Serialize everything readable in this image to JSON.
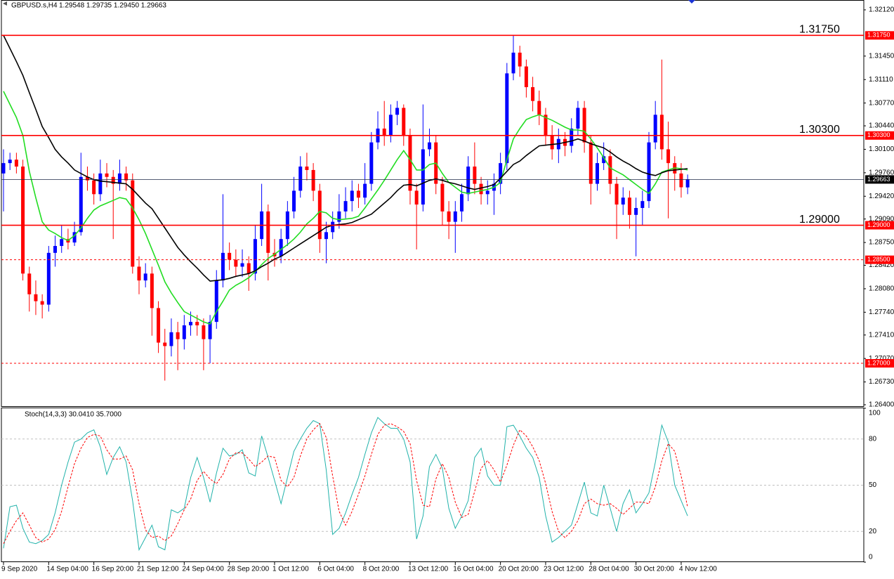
{
  "header": {
    "symbol": "GBPUSD.s,H4",
    "ohlc": "1.29548 1.29735 1.29450 1.29663"
  },
  "chart_data": [
    {
      "type": "candlestick",
      "categories": [
        "9 Sep 2020",
        null,
        null,
        null,
        null,
        null,
        null,
        "14 Sep 04:00",
        null,
        null,
        null,
        null,
        null,
        null,
        "16 Sep 20:00",
        null,
        null,
        null,
        null,
        null,
        null,
        "21 Sep 12:00",
        null,
        null,
        null,
        null,
        null,
        null,
        "24 Sep 04:00",
        null,
        null,
        null,
        null,
        null,
        null,
        "28 Sep 20:00",
        null,
        null,
        null,
        null,
        null,
        null,
        "1 Oct 12:00",
        null,
        null,
        null,
        null,
        null,
        null,
        "6 Oct 04:00",
        null,
        null,
        null,
        null,
        null,
        null,
        "8 Oct 20:00",
        null,
        null,
        null,
        null,
        null,
        null,
        "13 Oct 12:00",
        null,
        null,
        null,
        null,
        null,
        null,
        "16 Oct 04:00",
        null,
        null,
        null,
        null,
        null,
        null,
        "20 Oct 20:00",
        null,
        null,
        null,
        null,
        null,
        null,
        "23 Oct 12:00",
        null,
        null,
        null,
        null,
        null,
        null,
        "28 Oct 04:00",
        null,
        null,
        null,
        null,
        null,
        null,
        "30 Oct 20:00",
        null,
        null,
        null,
        null,
        null,
        null,
        "4 Nov 12:00",
        null
      ],
      "open": [
        1.2975,
        1.299,
        1.2995,
        1.2985,
        1.283,
        1.28,
        1.279,
        1.2785,
        1.286,
        1.287,
        1.288,
        1.2875,
        1.289,
        1.297,
        1.2965,
        1.2945,
        1.2975,
        1.297,
        1.296,
        1.2975,
        1.2965,
        1.284,
        1.282,
        1.283,
        1.278,
        1.273,
        1.2725,
        1.2745,
        1.2735,
        1.2755,
        1.276,
        1.2755,
        1.2735,
        1.276,
        1.282,
        1.286,
        1.285,
        1.284,
        1.2845,
        1.283,
        1.288,
        1.292,
        1.286,
        1.2855,
        1.288,
        1.292,
        1.295,
        1.2985,
        1.298,
        1.295,
        1.288,
        1.289,
        1.2905,
        1.292,
        1.2935,
        1.295,
        1.294,
        1.296,
        1.302,
        1.304,
        1.303,
        1.306,
        1.307,
        1.303,
        1.295,
        1.293,
        1.301,
        1.302,
        1.296,
        1.292,
        1.2905,
        1.292,
        1.2945,
        1.2985,
        1.296,
        1.2945,
        1.295,
        1.296,
        1.299,
        1.312,
        1.315,
        1.313,
        1.31,
        1.308,
        1.306,
        1.303,
        1.301,
        1.3025,
        1.3015,
        1.304,
        1.307,
        1.302,
        1.296,
        1.299,
        1.3,
        1.296,
        1.293,
        1.294,
        1.2915,
        1.2925,
        1.2935,
        1.302,
        1.306,
        1.301,
        1.299,
        1.2975,
        1.29548
      ],
      "high": [
        1.301,
        1.3005,
        1.3005,
        1.2995,
        1.284,
        1.282,
        1.28,
        1.287,
        1.2885,
        1.29,
        1.2895,
        1.2905,
        1.3005,
        1.2985,
        1.2975,
        1.2995,
        1.299,
        1.298,
        1.2995,
        1.2985,
        1.2975,
        1.2855,
        1.2845,
        1.284,
        1.279,
        1.275,
        1.2765,
        1.276,
        1.277,
        1.2775,
        1.277,
        1.2765,
        1.277,
        1.2835,
        1.2945,
        1.2875,
        1.2865,
        1.2865,
        1.2855,
        1.29,
        1.296,
        1.293,
        1.288,
        1.2895,
        1.2935,
        1.297,
        1.3,
        1.3005,
        1.299,
        1.296,
        1.2905,
        1.292,
        1.2945,
        1.2955,
        1.2965,
        1.296,
        1.299,
        1.3035,
        1.3065,
        1.308,
        1.3075,
        1.308,
        1.3075,
        1.304,
        1.296,
        1.3075,
        1.304,
        1.303,
        1.297,
        1.2935,
        1.2935,
        1.296,
        1.3,
        1.302,
        1.297,
        1.2965,
        1.2975,
        1.3005,
        1.3135,
        1.3175,
        1.316,
        1.314,
        1.3115,
        1.3095,
        1.307,
        1.3045,
        1.304,
        1.3035,
        1.3055,
        1.308,
        1.308,
        1.303,
        1.3005,
        1.302,
        1.301,
        1.297,
        1.2955,
        1.295,
        1.294,
        1.295,
        1.3035,
        1.308,
        1.314,
        1.305,
        1.3,
        1.299,
        1.29735
      ],
      "low": [
        1.292,
        1.298,
        1.2975,
        1.282,
        1.2775,
        1.277,
        1.2765,
        1.2775,
        1.284,
        1.286,
        1.2865,
        1.287,
        1.2885,
        1.295,
        1.293,
        1.2935,
        1.2955,
        1.288,
        1.295,
        1.295,
        1.283,
        1.28,
        1.281,
        1.274,
        1.2715,
        1.2675,
        1.271,
        1.269,
        1.272,
        1.274,
        1.274,
        1.269,
        1.27,
        1.275,
        1.281,
        1.2835,
        1.2825,
        1.2825,
        1.2805,
        1.282,
        1.287,
        1.282,
        1.284,
        1.2845,
        1.287,
        1.291,
        1.294,
        1.2965,
        1.2935,
        1.286,
        1.2845,
        1.288,
        1.2895,
        1.291,
        1.292,
        1.2925,
        1.293,
        1.295,
        1.301,
        1.3015,
        1.302,
        1.3045,
        1.3015,
        1.293,
        1.2865,
        1.292,
        1.3,
        1.2945,
        1.29,
        1.288,
        1.286,
        1.2905,
        1.2935,
        1.2945,
        1.293,
        1.293,
        1.2915,
        1.2945,
        1.298,
        1.311,
        1.3115,
        1.3085,
        1.3065,
        1.3045,
        1.3015,
        1.2995,
        1.299,
        1.3,
        1.3005,
        1.303,
        1.3005,
        1.293,
        1.295,
        1.298,
        1.2945,
        1.288,
        1.2915,
        1.2895,
        1.2855,
        1.29,
        1.2925,
        1.301,
        1.2995,
        1.291,
        1.295,
        1.294,
        1.2945
      ],
      "close": [
        1.299,
        1.2995,
        1.2985,
        1.283,
        1.28,
        1.279,
        1.2785,
        1.286,
        1.287,
        1.288,
        1.2875,
        1.289,
        1.297,
        1.2965,
        1.2945,
        1.2975,
        1.297,
        1.296,
        1.2975,
        1.2965,
        1.284,
        1.282,
        1.283,
        1.278,
        1.273,
        1.2725,
        1.2745,
        1.2735,
        1.2755,
        1.276,
        1.2755,
        1.2735,
        1.276,
        1.282,
        1.286,
        1.285,
        1.284,
        1.2845,
        1.283,
        1.288,
        1.292,
        1.286,
        1.2855,
        1.288,
        1.292,
        1.295,
        1.2985,
        1.298,
        1.295,
        1.288,
        1.289,
        1.2905,
        1.292,
        1.2935,
        1.295,
        1.294,
        1.296,
        1.302,
        1.304,
        1.303,
        1.306,
        1.307,
        1.303,
        1.295,
        1.293,
        1.301,
        1.302,
        1.296,
        1.292,
        1.2905,
        1.292,
        1.2945,
        1.2985,
        1.296,
        1.2945,
        1.295,
        1.296,
        1.299,
        1.312,
        1.315,
        1.313,
        1.31,
        1.308,
        1.306,
        1.303,
        1.301,
        1.3025,
        1.3015,
        1.304,
        1.307,
        1.302,
        1.296,
        1.299,
        1.3,
        1.296,
        1.293,
        1.294,
        1.2915,
        1.2925,
        1.2935,
        1.302,
        1.306,
        1.301,
        1.299,
        1.2975,
        1.2955,
        1.29663
      ],
      "up_color": "#0000ff",
      "down_color": "#ff0000",
      "series": [
        {
          "color": "#22dd22",
          "values": [
            1.3094,
            1.3075,
            1.3056,
            1.303,
            1.2978,
            1.294,
            1.2905,
            1.2893,
            1.2888,
            1.2882,
            1.2878,
            1.2885,
            1.2896,
            1.291,
            1.2922,
            1.2928,
            1.2932,
            1.2936,
            1.294,
            1.2938,
            1.2925,
            1.2908,
            1.2888,
            1.2865,
            1.2842,
            1.2818,
            1.2802,
            1.2788,
            1.2775,
            1.277,
            1.2765,
            1.276,
            1.2757,
            1.2775,
            1.279,
            1.2806,
            1.2813,
            1.2818,
            1.2824,
            1.2833,
            1.2843,
            1.2852,
            1.2858,
            1.2865,
            1.2872,
            1.288,
            1.289,
            1.2902,
            1.291,
            1.292,
            1.2918,
            1.291,
            1.2908,
            1.2909,
            1.291,
            1.2913,
            1.2925,
            1.2938,
            1.2951,
            1.2965,
            1.298,
            1.2995,
            1.3008,
            1.2995,
            1.298,
            1.298,
            1.2988,
            1.299,
            1.2975,
            1.2962,
            1.2955,
            1.2948,
            1.2946,
            1.2948,
            1.295,
            1.2952,
            1.2955,
            1.2962,
            1.2995,
            1.3025,
            1.304,
            1.3053,
            1.3057,
            1.306,
            1.3056,
            1.3052,
            1.3047,
            1.3042,
            1.3038,
            1.3038,
            1.3036,
            1.3025,
            1.3012,
            1.2998,
            1.2983,
            1.2978,
            1.2973,
            1.2966,
            1.2959,
            1.2952,
            1.2946,
            1.296,
            1.2977,
            1.298,
            1.2983,
            1.2982,
            1.298
          ]
        },
        {
          "color": "#000000",
          "values": [
            1.3175,
            1.3156,
            1.3137,
            1.3117,
            1.3092,
            1.3068,
            1.3043,
            1.3027,
            1.301,
            1.2999,
            1.299,
            1.298,
            1.2975,
            1.297,
            1.2966,
            1.2964,
            1.2963,
            1.2962,
            1.2961,
            1.296,
            1.2952,
            1.2942,
            1.2932,
            1.2924,
            1.291,
            1.2896,
            1.2882,
            1.2868,
            1.2857,
            1.2847,
            1.2838,
            1.2828,
            1.2819,
            1.282,
            1.2821,
            1.2823,
            1.2826,
            1.2828,
            1.283,
            1.2834,
            1.284,
            1.2845,
            1.2851,
            1.2855,
            1.2861,
            1.2867,
            1.2873,
            1.2879,
            1.2885,
            1.2891,
            1.2897,
            1.29,
            1.2901,
            1.2902,
            1.2904,
            1.2908,
            1.2912,
            1.2916,
            1.2924,
            1.2932,
            1.294,
            1.295,
            1.2958,
            1.2959,
            1.2957,
            1.2961,
            1.2965,
            1.2967,
            1.2965,
            1.2962,
            1.296,
            1.2957,
            1.2954,
            1.2952,
            1.2954,
            1.2956,
            1.2959,
            1.2968,
            1.2978,
            1.2988,
            1.2993,
            1.3001,
            1.3008,
            1.3015,
            1.3016,
            1.3017,
            1.3018,
            1.302,
            1.3022,
            1.3025,
            1.3022,
            1.3018,
            1.3015,
            1.3012,
            1.3006,
            1.2999,
            1.2993,
            1.2988,
            1.2982,
            1.2977,
            1.2974,
            1.2972,
            1.2976,
            1.2979,
            1.298,
            1.2981,
            1.2982
          ]
        }
      ],
      "ylim": [
        1.264,
        1.3212
      ],
      "yticks": [
        {
          "value": 1.3212,
          "label": "1.32120"
        },
        {
          "value": 1.3145,
          "label": "1.31450"
        },
        {
          "value": 1.3111,
          "label": "1.31110"
        },
        {
          "value": 1.3077,
          "label": "1.30770"
        },
        {
          "value": 1.3044,
          "label": "1.30440"
        },
        {
          "value": 1.301,
          "label": "1.30100"
        },
        {
          "value": 1.2976,
          "label": "1.29760"
        },
        {
          "value": 1.2942,
          "label": "1.29420"
        },
        {
          "value": 1.2909,
          "label": "1.29090"
        },
        {
          "value": 1.2875,
          "label": "1.28750"
        },
        {
          "value": 1.2842,
          "label": "1.28420"
        },
        {
          "value": 1.2808,
          "label": "1.28080"
        },
        {
          "value": 1.2774,
          "label": "1.27740"
        },
        {
          "value": 1.2741,
          "label": "1.27410"
        },
        {
          "value": 1.2707,
          "label": "1.27070"
        },
        {
          "value": 1.2673,
          "label": "1.26730"
        },
        {
          "value": 1.264,
          "label": "1.26400"
        }
      ],
      "levels": [
        {
          "value": 1.3175,
          "label": "1.31750",
          "style": "solid",
          "annotated": true
        },
        {
          "value": 1.303,
          "label": "1.30300",
          "style": "solid",
          "annotated": true
        },
        {
          "value": 1.29,
          "label": "1.29000",
          "style": "solid",
          "annotated": true
        },
        {
          "value": 1.285,
          "label": "1.28500",
          "style": "dashed",
          "annotated": false
        },
        {
          "value": 1.27,
          "label": "1.27000",
          "style": "dashed",
          "annotated": false
        }
      ],
      "level_color": "#ff0000",
      "current_price": {
        "value": 1.29663,
        "label": "1.29663"
      }
    },
    {
      "type": "line",
      "title": "Stoch(14,3,3) 30.0410 35.7000",
      "series": [
        {
          "color": "#20b2aa",
          "dashed": false,
          "values": [
            9,
            36,
            37,
            22,
            13,
            12,
            14,
            18,
            32,
            50,
            65,
            78,
            80,
            84,
            86,
            75,
            57,
            68,
            75,
            65,
            40,
            8,
            16,
            24,
            10,
            8,
            34,
            32,
            35,
            55,
            68,
            55,
            39,
            58,
            74,
            69,
            70,
            73,
            58,
            56,
            82,
            68,
            53,
            38,
            55,
            72,
            80,
            87,
            92,
            90,
            60,
            18,
            22,
            32,
            44,
            55,
            70,
            84,
            94,
            90,
            87,
            87,
            80,
            65,
            15,
            30,
            62,
            70,
            61,
            35,
            22,
            30,
            40,
            68,
            74,
            56,
            50,
            50,
            88,
            89,
            82,
            74,
            68,
            55,
            30,
            13,
            16,
            20,
            24,
            38,
            52,
            32,
            30,
            50,
            35,
            20,
            38,
            47,
            32,
            38,
            45,
            65,
            89,
            78,
            50,
            40,
            30.041
          ]
        },
        {
          "color": "#ff0000",
          "dashed": true,
          "values": [
            12,
            20,
            27,
            32,
            24,
            16,
            13,
            15,
            21,
            33,
            49,
            64,
            74,
            81,
            83,
            82,
            73,
            67,
            67,
            69,
            60,
            38,
            21,
            16,
            17,
            14,
            17,
            25,
            34,
            41,
            53,
            59,
            54,
            51,
            57,
            67,
            71,
            71,
            67,
            62,
            65,
            69,
            68,
            53,
            49,
            55,
            69,
            80,
            86,
            90,
            81,
            56,
            33,
            24,
            33,
            44,
            56,
            70,
            83,
            89,
            90,
            88,
            85,
            77,
            53,
            37,
            36,
            54,
            64,
            55,
            39,
            29,
            31,
            46,
            61,
            66,
            60,
            52,
            63,
            76,
            86,
            82,
            75,
            66,
            51,
            33,
            20,
            16,
            20,
            27,
            38,
            41,
            38,
            37,
            38,
            35,
            31,
            35,
            39,
            39,
            38,
            49,
            66,
            77,
            72,
            56,
            35.7
          ]
        }
      ],
      "ylim": [
        0,
        100
      ],
      "yticks": [
        100,
        80,
        50,
        20,
        0
      ],
      "grid": true
    }
  ]
}
